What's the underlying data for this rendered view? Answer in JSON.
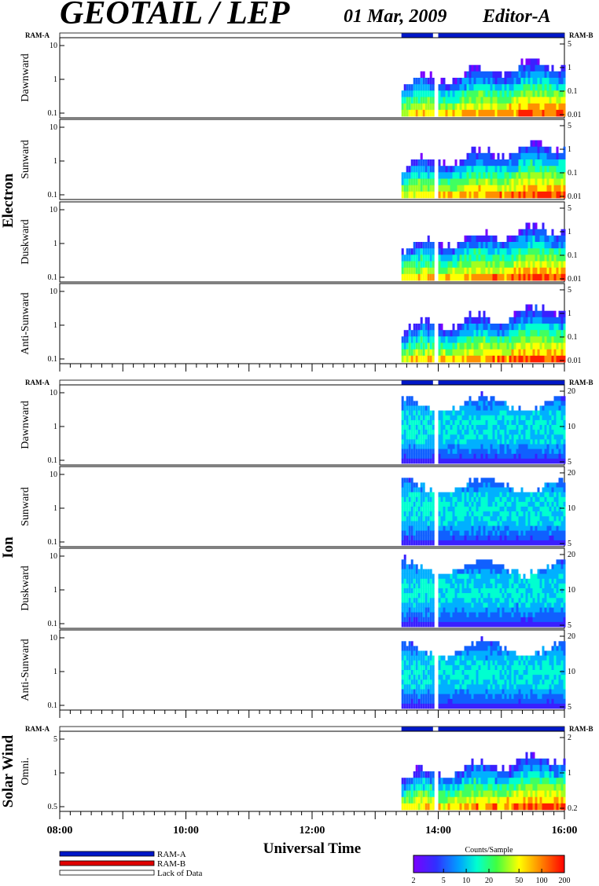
{
  "header": {
    "title": "GEOTAIL / LEP",
    "date": "01 Mar, 2009",
    "editor": "Editor-A"
  },
  "colors": {
    "ram_a": "#0018c8",
    "ram_b": "#e00000",
    "lack": "#ffffff"
  },
  "chart_data": {
    "type": "heatmap",
    "x_axis": {
      "label": "Universal Time",
      "range": [
        "08:00",
        "16:00"
      ],
      "major_ticks": [
        "08:00",
        "10:00",
        "12:00",
        "14:00",
        "16:00"
      ]
    },
    "data_coverage": [
      {
        "start": "08:00",
        "end": "13:25",
        "mode": "Lack of Data"
      },
      {
        "start": "13:25",
        "end": "13:55",
        "mode": "RAM-A"
      },
      {
        "start": "13:55",
        "end": "14:00",
        "mode": "Lack of Data"
      },
      {
        "start": "14:00",
        "end": "16:00",
        "mode": "RAM-A"
      }
    ],
    "groups": [
      {
        "name": "Electron",
        "left_ticks": [
          "10",
          "1",
          "0.1"
        ],
        "right_ticks": [
          "5",
          "1",
          "0.1",
          "0.01"
        ],
        "panels": [
          "Dawnward",
          "Sunward",
          "Duskward",
          "Anti-Sunward"
        ]
      },
      {
        "name": "Ion",
        "left_ticks": [
          "10",
          "1",
          "0.1"
        ],
        "right_ticks": [
          "20",
          "10",
          "5"
        ],
        "panels": [
          "Dawnward",
          "Sunward",
          "Duskward",
          "Anti-Sunward"
        ]
      },
      {
        "name": "Solar Wind",
        "left_ticks": [
          "5",
          "1",
          "0.5"
        ],
        "right_ticks": [
          "2",
          "1",
          "0.2"
        ],
        "panels": [
          "Omni."
        ]
      }
    ],
    "colorbar": {
      "label": "Counts/Sample",
      "ticks": [
        "2",
        "5",
        "10",
        "20",
        "50",
        "100",
        "200"
      ],
      "scale": "log",
      "range": [
        2,
        200
      ]
    }
  },
  "ram_labels": {
    "left": "RAM-A",
    "right": "RAM-B"
  },
  "legend": [
    {
      "label": "RAM-A",
      "color": "#0018c8"
    },
    {
      "label": "RAM-B",
      "color": "#e00000"
    },
    {
      "label": "Lack of Data",
      "color": "#ffffff"
    }
  ]
}
